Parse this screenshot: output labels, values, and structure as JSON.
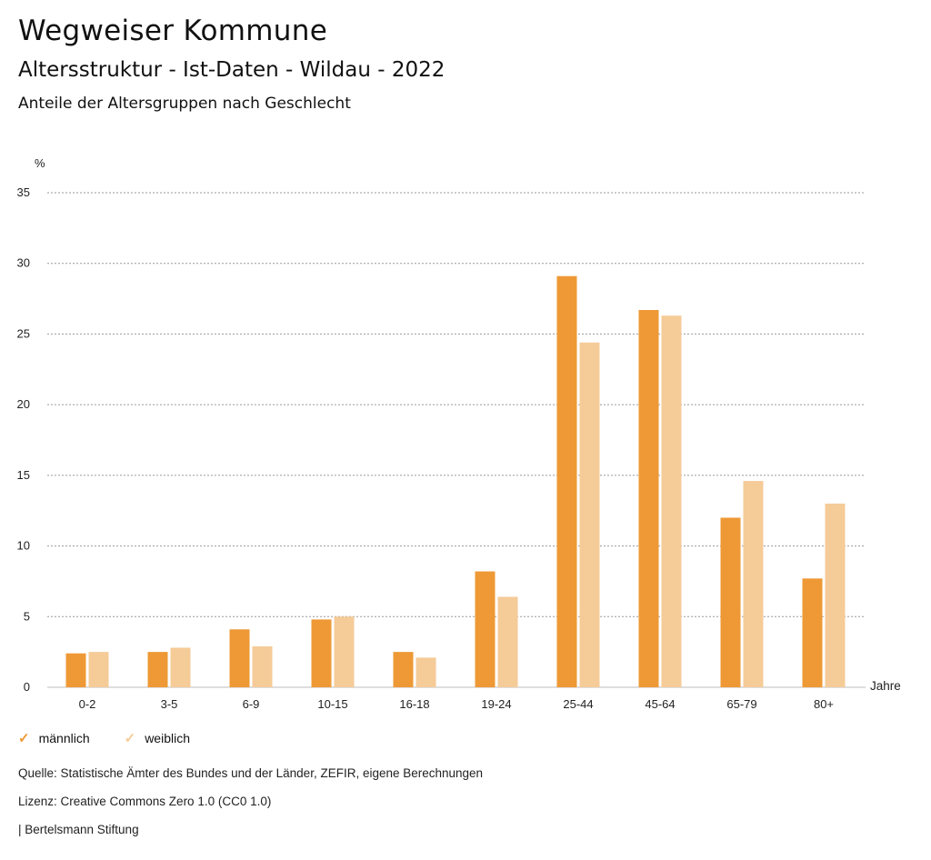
{
  "header": {
    "title": "Wegweiser Kommune",
    "subtitle": "Altersstruktur - Ist-Daten - Wildau - 2022",
    "chart_heading": "Anteile der Altersgruppen nach Geschlecht"
  },
  "chart_data": {
    "type": "bar",
    "title": "Anteile der Altersgruppen nach Geschlecht",
    "ylabel": "%",
    "xlabel": "Jahre",
    "ylim": [
      0,
      35
    ],
    "yticks": [
      0,
      5,
      10,
      15,
      20,
      25,
      30,
      35
    ],
    "grid": true,
    "legend_position": "bottom-left",
    "categories": [
      "0-2",
      "3-5",
      "6-9",
      "10-15",
      "16-18",
      "19-24",
      "25-44",
      "45-64",
      "65-79",
      "80+"
    ],
    "series": [
      {
        "name": "männlich",
        "color": "#ee9935",
        "values": [
          2.4,
          2.5,
          4.1,
          4.8,
          2.5,
          8.2,
          29.1,
          26.7,
          12.0,
          7.7
        ]
      },
      {
        "name": "weiblich",
        "color": "#f5cb98",
        "values": [
          2.5,
          2.8,
          2.9,
          5.0,
          2.1,
          6.4,
          24.4,
          26.3,
          14.6,
          13.0
        ]
      }
    ]
  },
  "legend": {
    "items": [
      {
        "label": "männlich",
        "color": "#ee9935"
      },
      {
        "label": "weiblich",
        "color": "#f5cb98"
      }
    ]
  },
  "footer": {
    "source": "Quelle: Statistische Ämter des Bundes und der Länder, ZEFIR, eigene Berechnungen",
    "license": "Lizenz: Creative Commons Zero 1.0 (CC0 1.0)",
    "publisher": "| Bertelsmann Stiftung"
  }
}
